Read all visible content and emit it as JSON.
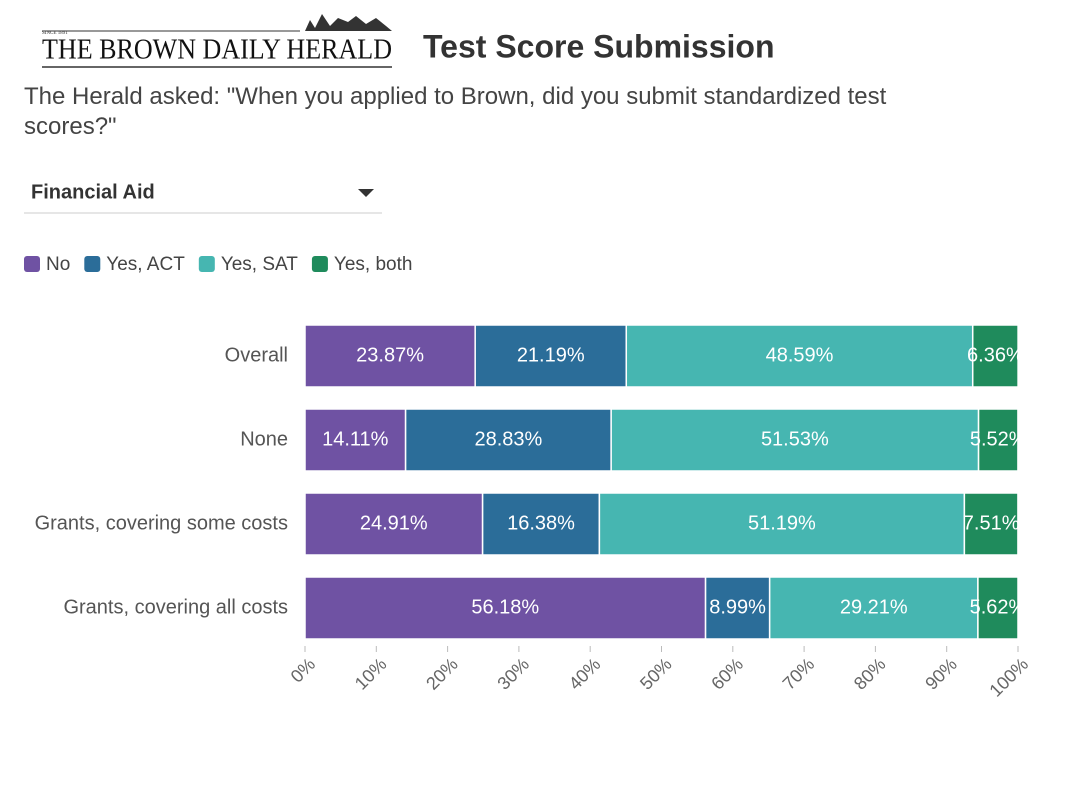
{
  "header": {
    "logo": "THE BROWN DAILY HERALD",
    "since": "SINCE 1891"
  },
  "filter": {
    "label": "Financial Aid"
  },
  "chart_data": {
    "type": "bar",
    "orientation": "horizontal",
    "stacked": true,
    "title": "Test Score Submission",
    "subtitle": "The Herald asked: \"When you applied to Brown, did you submit standardized test scores?\"",
    "categories": [
      "Overall",
      "None",
      "Grants, covering some costs",
      "Grants, covering all costs"
    ],
    "series": [
      {
        "name": "No",
        "color": "#6f52a3",
        "values": [
          23.87,
          14.11,
          24.91,
          56.18
        ],
        "value_labels": [
          "23.87%",
          "14.11%",
          "24.91%",
          "56.18%"
        ]
      },
      {
        "name": "Yes, ACT",
        "color": "#2b6d99",
        "values": [
          21.19,
          28.83,
          16.38,
          8.99
        ],
        "value_labels": [
          "21.19%",
          "28.83%",
          "16.38%",
          "8.99%"
        ]
      },
      {
        "name": "Yes, SAT",
        "color": "#46b6b1",
        "values": [
          48.59,
          51.53,
          51.19,
          29.21
        ],
        "value_labels": [
          "48.59%",
          "51.53%",
          "51.19%",
          "29.21%"
        ]
      },
      {
        "name": "Yes, both",
        "color": "#1f8b5c",
        "values": [
          6.36,
          5.52,
          7.51,
          5.62
        ],
        "value_labels": [
          "6.36%",
          "5.52%",
          "7.51%",
          "5.62%"
        ]
      }
    ],
    "xlim": [
      0,
      100
    ],
    "xticks": [
      {
        "value": 0,
        "label": "0%"
      },
      {
        "value": 10,
        "label": "10%"
      },
      {
        "value": 20,
        "label": "20%"
      },
      {
        "value": 30,
        "label": "30%"
      },
      {
        "value": 40,
        "label": "40%"
      },
      {
        "value": 50,
        "label": "50%"
      },
      {
        "value": 60,
        "label": "60%"
      },
      {
        "value": 70,
        "label": "70%"
      },
      {
        "value": 80,
        "label": "80%"
      },
      {
        "value": 90,
        "label": "90%"
      },
      {
        "value": 100,
        "label": "100%"
      }
    ],
    "legend": "top-left"
  }
}
